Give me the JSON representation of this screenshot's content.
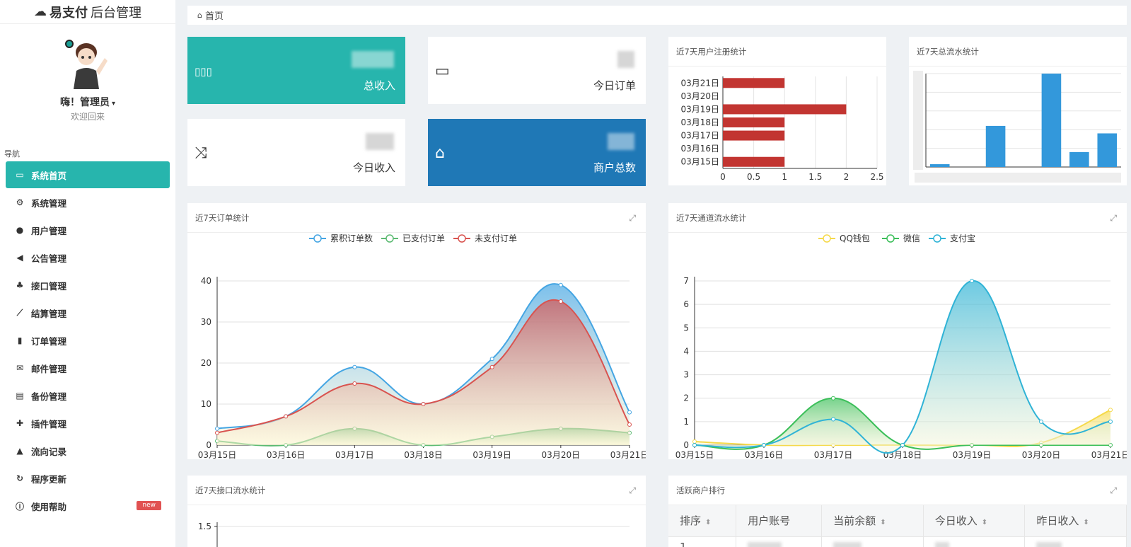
{
  "brand": {
    "bold": "易支付",
    "rest": "后台管理"
  },
  "profile": {
    "name": "嗨！管理员",
    "caret": "▾",
    "welcome": "欢迎回来"
  },
  "nav": {
    "label": "导航",
    "items": [
      {
        "label": "系统首页",
        "icon": "▭"
      },
      {
        "label": "系统管理",
        "icon": "⚙"
      },
      {
        "label": "用户管理",
        "icon": "●"
      },
      {
        "label": "公告管理",
        "icon": "◀"
      },
      {
        "label": "接口管理",
        "icon": "♣"
      },
      {
        "label": "结算管理",
        "icon": "⟋"
      },
      {
        "label": "订单管理",
        "icon": "▮"
      },
      {
        "label": "邮件管理",
        "icon": "✉"
      },
      {
        "label": "备份管理",
        "icon": "▤"
      },
      {
        "label": "插件管理",
        "icon": "✚"
      },
      {
        "label": "流向记录",
        "icon": "▲"
      },
      {
        "label": "程序更新",
        "icon": "↻"
      },
      {
        "label": "使用帮助",
        "icon": "ⓘ",
        "badge": "new"
      }
    ]
  },
  "breadcrumb": {
    "icon": "⌂",
    "label": "首页"
  },
  "stats": {
    "total_income": {
      "label": "总收入",
      "icon": "▯▯▯"
    },
    "today_orders": {
      "label": "今日订单",
      "icon": "▭"
    },
    "today_income": {
      "label": "今日收入",
      "icon": "⤨"
    },
    "merchants": {
      "label": "商户总数",
      "icon": "⌂"
    }
  },
  "colors": {
    "teal": "#27b5ad",
    "blue": "#1f78b6",
    "red": "#c23531",
    "barblue": "#3398db"
  },
  "panels": {
    "user_reg": {
      "title": "近7天用户注册统计"
    },
    "total_flow": {
      "title": "近7天总流水统计"
    },
    "orders": {
      "title": "近7天订单统计",
      "expand": "⤢"
    },
    "channel": {
      "title": "近7天通道流水统计",
      "expand": "⤢"
    },
    "iface": {
      "title": "近7天接口流水统计",
      "expand": "⤢"
    },
    "rank": {
      "title": "活跃商户排行",
      "expand": "⤢",
      "headers": [
        "排序",
        "用户账号",
        "当前余额",
        "今日收入",
        "昨日收入"
      ],
      "sort_icon": "⬍",
      "first_rank": "1"
    }
  },
  "chart_data": [
    {
      "id": "user_reg",
      "type": "bar",
      "orientation": "horizontal",
      "categories": [
        "03月15日",
        "03月16日",
        "03月17日",
        "03月18日",
        "03月19日",
        "03月20日",
        "03月21日"
      ],
      "values": [
        1,
        0,
        1,
        1,
        2,
        0,
        1
      ],
      "xlim": [
        0,
        2.5
      ],
      "xticks": [
        "0",
        "0.5",
        "1",
        "1.5",
        "2",
        "2.5"
      ],
      "color": "#c23531"
    },
    {
      "id": "total_flow",
      "type": "bar",
      "values": [
        0.15,
        0,
        2.2,
        0,
        5.0,
        0.8,
        1.8
      ],
      "color": "#3398db"
    },
    {
      "id": "orders",
      "type": "area",
      "categories": [
        "03月15日",
        "03月16日",
        "03月17日",
        "03月18日",
        "03月19日",
        "03月20日",
        "03月21日"
      ],
      "ylim": [
        0,
        40
      ],
      "yticks": [
        "0",
        "10",
        "20",
        "30",
        "40"
      ],
      "series": [
        {
          "name": "累积订单数",
          "values": [
            4,
            7,
            19,
            10,
            21,
            39,
            8
          ],
          "color": "#44a5e3"
        },
        {
          "name": "已支付订单",
          "values": [
            1,
            0,
            4,
            0,
            2,
            4,
            3
          ],
          "color": "#5cba72"
        },
        {
          "name": "未支付订单",
          "values": [
            3,
            7,
            15,
            10,
            19,
            35,
            5
          ],
          "color": "#d9534f"
        }
      ]
    },
    {
      "id": "channel",
      "type": "area",
      "categories": [
        "03月15日",
        "03月16日",
        "03月17日",
        "03月18日",
        "03月19日",
        "03月20日",
        "03月21日"
      ],
      "ylim": [
        0,
        7
      ],
      "yticks": [
        "0",
        "1",
        "2",
        "3",
        "4",
        "5",
        "6",
        "7"
      ],
      "series": [
        {
          "name": "QQ钱包",
          "values": [
            0.15,
            0,
            0,
            0,
            0,
            0.1,
            1.5
          ],
          "color": "#f5d94a"
        },
        {
          "name": "微信",
          "values": [
            0,
            0,
            2,
            0,
            0,
            0,
            0
          ],
          "color": "#3cbf5a"
        },
        {
          "name": "支付宝",
          "values": [
            0,
            0,
            1.1,
            0,
            7,
            1,
            1
          ],
          "color": "#2fb3d6"
        }
      ]
    },
    {
      "id": "iface",
      "type": "line",
      "yticks": [
        "1.5"
      ]
    }
  ]
}
